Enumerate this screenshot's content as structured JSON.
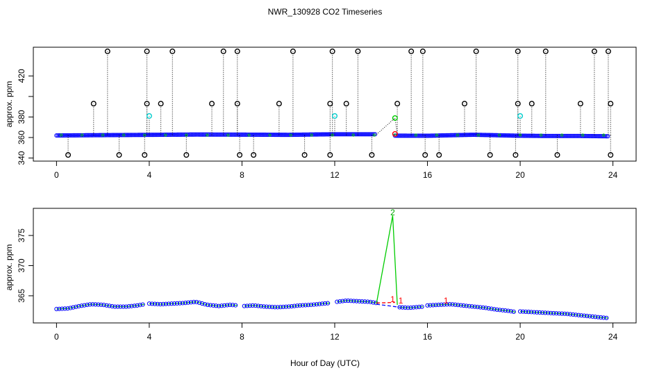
{
  "chart_data": [
    {
      "type": "scatter",
      "title": "NWR_130928  CO2 Timeseries",
      "ylabel": "approx. ppm",
      "xlabel": "",
      "xlim": [
        -1,
        25
      ],
      "ylim": [
        337,
        448
      ],
      "x_ticks": [
        0,
        4,
        8,
        12,
        16,
        20,
        24
      ],
      "y_ticks": [
        340,
        360,
        380,
        400,
        420
      ],
      "y_tick_labels": [
        340,
        360,
        380,
        "",
        420
      ],
      "grid": false,
      "colors": {
        "main": "#0000ff",
        "base": "#00cc00",
        "high": "#000000",
        "cyan": "#00cccc",
        "red": "#ff0000"
      },
      "series": [
        {
          "kind": "baseline",
          "segments": [
            {
              "x": [
                0,
                2,
                4,
                6,
                8,
                10,
                12,
                13.8
              ],
              "y": [
                362,
                362.3,
                362.6,
                362.9,
                362.8,
                362.6,
                363.2,
                363.2
              ]
            },
            {
              "x": [
                14.6,
                16,
                18,
                19.8,
                21,
                22.5,
                23.8
              ],
              "y": [
                361.8,
                361.7,
                362.7,
                361.8,
                361.5,
                361.5,
                361.2
              ]
            }
          ]
        },
        {
          "kind": "spikes_high",
          "x": [
            2.2,
            3.9,
            5.0,
            7.2,
            7.8,
            10.2,
            11.9,
            13.0,
            15.3,
            15.8,
            18.1,
            19.9,
            21.1,
            23.2,
            23.8
          ],
          "y": [
            444,
            444,
            444,
            444,
            444,
            444,
            444,
            444,
            444,
            444,
            444,
            444,
            444,
            444,
            444
          ]
        },
        {
          "kind": "spikes_mid",
          "x": [
            1.6,
            3.9,
            4.5,
            6.7,
            7.8,
            9.6,
            11.8,
            12.5,
            14.7,
            17.6,
            19.9,
            20.5,
            22.6,
            23.9
          ],
          "y": [
            393,
            393,
            393,
            393,
            393,
            393,
            393,
            393,
            393,
            393,
            393,
            393,
            393,
            393
          ]
        },
        {
          "kind": "spikes_low",
          "x": [
            0.5,
            2.7,
            3.8,
            5.6,
            7.9,
            8.5,
            10.7,
            11.8,
            13.6,
            15.9,
            16.5,
            18.7,
            19.8,
            21.6,
            23.9
          ],
          "y": [
            343,
            343,
            343,
            343,
            343,
            343,
            343,
            343,
            343,
            343,
            343,
            343,
            343,
            343,
            343
          ]
        },
        {
          "kind": "cyan",
          "x": [
            4.0,
            12.0,
            20.0
          ],
          "y": [
            381,
            381,
            381
          ]
        },
        {
          "kind": "green_spike",
          "x": [
            13.8,
            14.6,
            14.7
          ],
          "y": [
            363,
            379,
            363
          ]
        },
        {
          "kind": "red",
          "x": [
            14.6
          ],
          "y": [
            363.5
          ]
        }
      ]
    },
    {
      "type": "line",
      "title": "",
      "ylabel": "approx. ppm",
      "xlabel": "Hour of Day (UTC)",
      "xlim": [
        -1,
        25
      ],
      "ylim": [
        360.5,
        379.5
      ],
      "x_ticks": [
        0,
        4,
        8,
        12,
        16,
        20,
        24
      ],
      "y_ticks": [
        365,
        370,
        375
      ],
      "grid": false,
      "series": [
        {
          "kind": "segments",
          "segments": [
            {
              "x": [
                0,
                0.5,
                1,
                1.5,
                2,
                2.5,
                3,
                3.5,
                3.8
              ],
              "y": [
                362.8,
                362.9,
                363.3,
                363.6,
                363.5,
                363.2,
                363.2,
                363.4,
                363.6
              ]
            },
            {
              "x": [
                4,
                4.5,
                5,
                5.5,
                6,
                6.5,
                7,
                7.5,
                7.8
              ],
              "y": [
                363.7,
                363.6,
                363.7,
                363.8,
                364,
                363.5,
                363.3,
                363.5,
                363.4
              ]
            },
            {
              "x": [
                8.1,
                8.5,
                9,
                9.5,
                10,
                10.5,
                11,
                11.5,
                11.8
              ],
              "y": [
                363.3,
                363.4,
                363.2,
                363.1,
                363.2,
                363.4,
                363.5,
                363.7,
                363.8
              ]
            },
            {
              "x": [
                12.1,
                12.5,
                13,
                13.5,
                13.8
              ],
              "y": [
                364,
                364.2,
                364.1,
                364,
                363.8
              ]
            },
            {
              "x": [
                14.8,
                15.2,
                15.8
              ],
              "y": [
                363.1,
                363,
                363.2
              ]
            },
            {
              "x": [
                16,
                16.5,
                17,
                17.5,
                18,
                18.5,
                19,
                19.5,
                19.8
              ],
              "y": [
                363.4,
                363.5,
                363.6,
                363.4,
                363.2,
                363,
                362.7,
                362.5,
                362.3
              ]
            },
            {
              "x": [
                20,
                20.5,
                21,
                21.5,
                22,
                22.5,
                23,
                23.5,
                23.8
              ],
              "y": [
                362.4,
                362.3,
                362.2,
                362.1,
                362,
                361.8,
                361.6,
                361.4,
                361.3
              ]
            }
          ]
        },
        {
          "kind": "spike_green",
          "x": [
            13.8,
            14.5,
            14.7
          ],
          "y": [
            363.7,
            378.3,
            363.5
          ]
        },
        {
          "kind": "spike_labels",
          "labels": [
            {
              "text": "2",
              "x": 14.5,
              "y": 378.8,
              "color": "green"
            },
            {
              "text": "1",
              "x": 14.5,
              "y": 364.4,
              "color": "red"
            },
            {
              "text": "1",
              "x": 14.85,
              "y": 364.2,
              "color": "red"
            },
            {
              "text": "1",
              "x": 16.8,
              "y": 364.2,
              "color": "red"
            }
          ]
        }
      ]
    }
  ]
}
